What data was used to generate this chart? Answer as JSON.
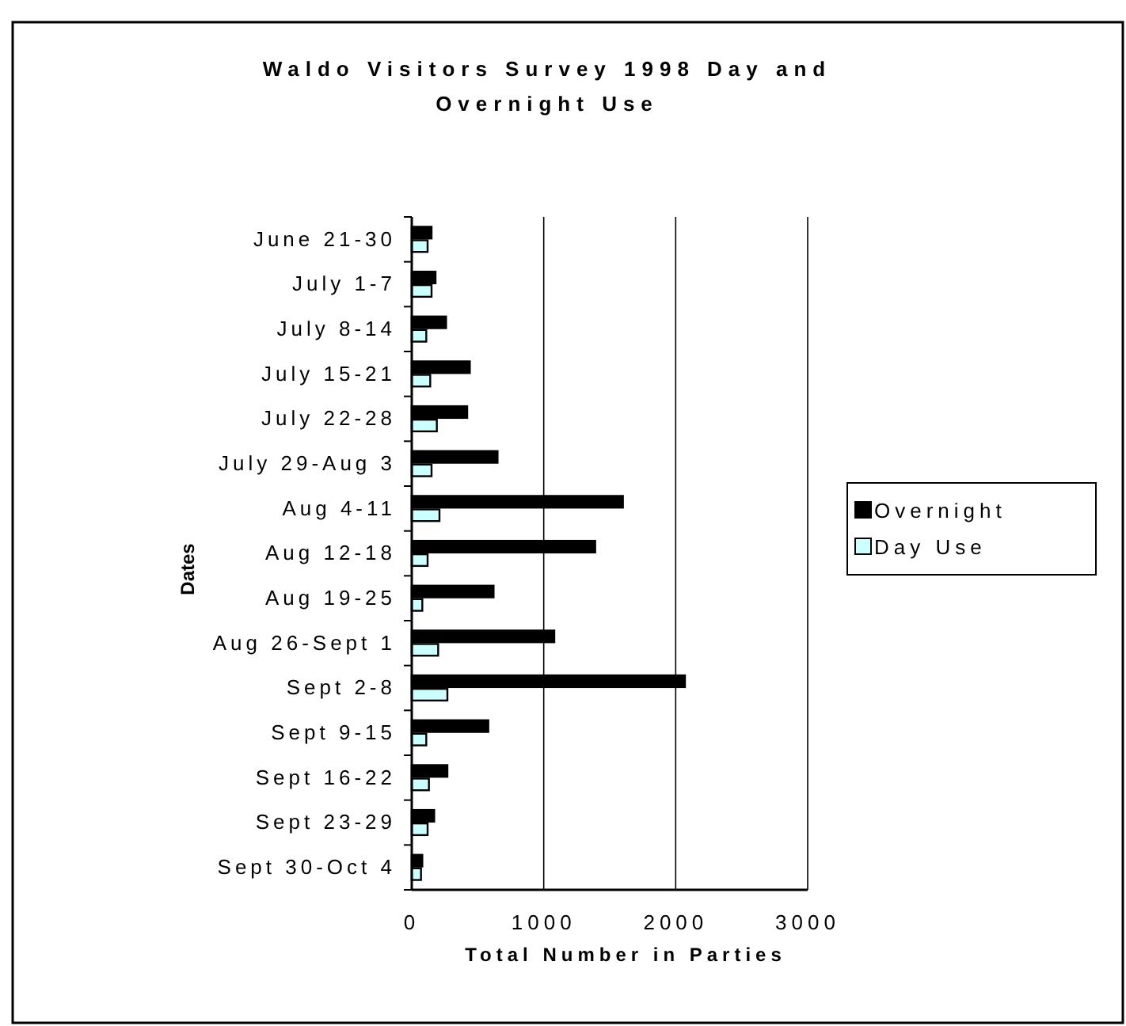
{
  "chart_data": {
    "type": "bar",
    "orientation": "horizontal",
    "title": "Waldo Visitors Survey 1998 Day and Overnight Use",
    "xlabel": "Total Number in Parties",
    "ylabel": "Dates",
    "categories": [
      "June 21-30",
      "July 1-7",
      "July 8-14",
      "July 15-21",
      "July 22-28",
      "July 29-Aug 3",
      "Aug 4-11",
      "Aug 12-18",
      "Aug 19-25",
      "Aug 26-Sept 1",
      "Sept 2-8",
      "Sept 9-15",
      "Sept 16-22",
      "Sept 23-29",
      "Sept 30-Oct 4"
    ],
    "series": [
      {
        "name": "Overnight",
        "color": "#000000",
        "values": [
          150,
          180,
          260,
          440,
          420,
          650,
          1600,
          1390,
          620,
          1080,
          2070,
          580,
          270,
          170,
          80
        ]
      },
      {
        "name": "Day Use",
        "color": "#ccffff",
        "values": [
          120,
          150,
          110,
          140,
          190,
          150,
          210,
          120,
          80,
          200,
          270,
          110,
          130,
          120,
          70
        ]
      }
    ],
    "xlim": [
      0,
      3000
    ],
    "xticks": [
      0,
      1000,
      2000,
      3000
    ],
    "grid": "x",
    "legend": "right"
  }
}
